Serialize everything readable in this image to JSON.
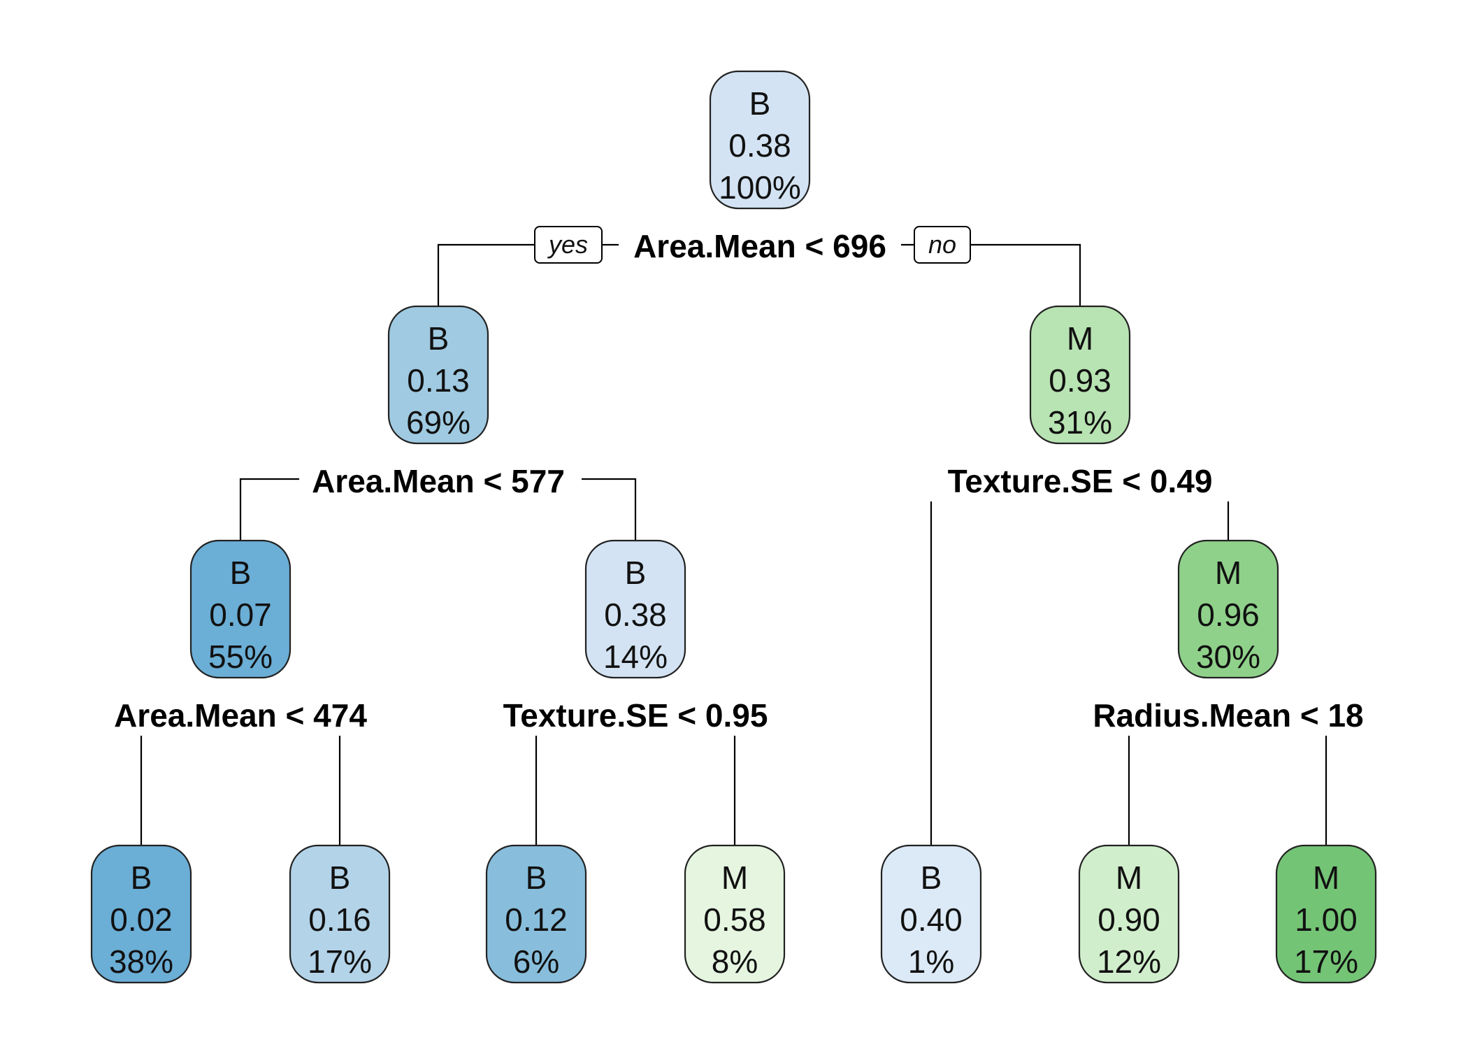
{
  "labels": {
    "yes": "yes",
    "no": "no"
  },
  "nodes": [
    {
      "id": "root",
      "class": "B",
      "prob": "0.38",
      "pct": "100%",
      "fill": "#d3e3f3"
    },
    {
      "id": "n2",
      "class": "B",
      "prob": "0.13",
      "pct": "69%",
      "fill": "#9fcae1"
    },
    {
      "id": "n3",
      "class": "M",
      "prob": "0.93",
      "pct": "31%",
      "fill": "#b8e3b2"
    },
    {
      "id": "n4",
      "class": "B",
      "prob": "0.07",
      "pct": "55%",
      "fill": "#6baed6"
    },
    {
      "id": "n5",
      "class": "B",
      "prob": "0.38",
      "pct": "14%",
      "fill": "#d3e3f3"
    },
    {
      "id": "n7",
      "class": "M",
      "prob": "0.96",
      "pct": "30%",
      "fill": "#8fd18a"
    },
    {
      "id": "l1",
      "class": "B",
      "prob": "0.02",
      "pct": "38%",
      "fill": "#6baed6"
    },
    {
      "id": "l2",
      "class": "B",
      "prob": "0.16",
      "pct": "17%",
      "fill": "#b3d3e8"
    },
    {
      "id": "l3",
      "class": "B",
      "prob": "0.12",
      "pct": "6%",
      "fill": "#88bedc"
    },
    {
      "id": "l4",
      "class": "M",
      "prob": "0.58",
      "pct": "8%",
      "fill": "#e5f5e0"
    },
    {
      "id": "l5",
      "class": "B",
      "prob": "0.40",
      "pct": "1%",
      "fill": "#dce9f6"
    },
    {
      "id": "l6",
      "class": "M",
      "prob": "0.90",
      "pct": "12%",
      "fill": "#d0eecb"
    },
    {
      "id": "l7",
      "class": "M",
      "prob": "1.00",
      "pct": "17%",
      "fill": "#74c476"
    }
  ],
  "splits": [
    {
      "id": "s_root",
      "label": "Area.Mean < 696"
    },
    {
      "id": "s_n2",
      "label": "Area.Mean < 577"
    },
    {
      "id": "s_n3",
      "label": "Texture.SE < 0.49"
    },
    {
      "id": "s_n4",
      "label": "Area.Mean < 474"
    },
    {
      "id": "s_n5",
      "label": "Texture.SE < 0.95"
    },
    {
      "id": "s_n7",
      "label": "Radius.Mean < 18"
    }
  ]
}
